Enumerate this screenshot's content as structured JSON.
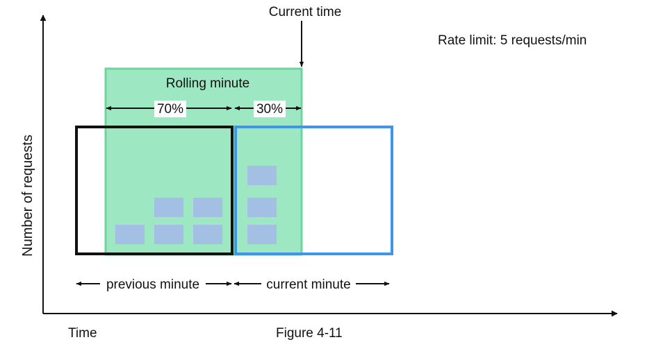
{
  "labels": {
    "current_time": "Current time",
    "rate_limit": "Rate limit: 5 requests/min",
    "rolling_minute": "Rolling minute",
    "pct_previous": "70%",
    "pct_current": "30%",
    "previous_minute": "previous minute",
    "current_minute": "current minute",
    "y_axis": "Number of requests",
    "x_axis": "Time",
    "figure": "Figure 4-11"
  },
  "requests": {
    "previous_minute": 5,
    "current_minute": 3
  },
  "colors": {
    "rolling_fill": "#9DE8C3",
    "rolling_stroke": "#6FD39F",
    "previous_box": "#111111",
    "current_box": "#3D95EC",
    "request_block": "#A3BFE3"
  }
}
